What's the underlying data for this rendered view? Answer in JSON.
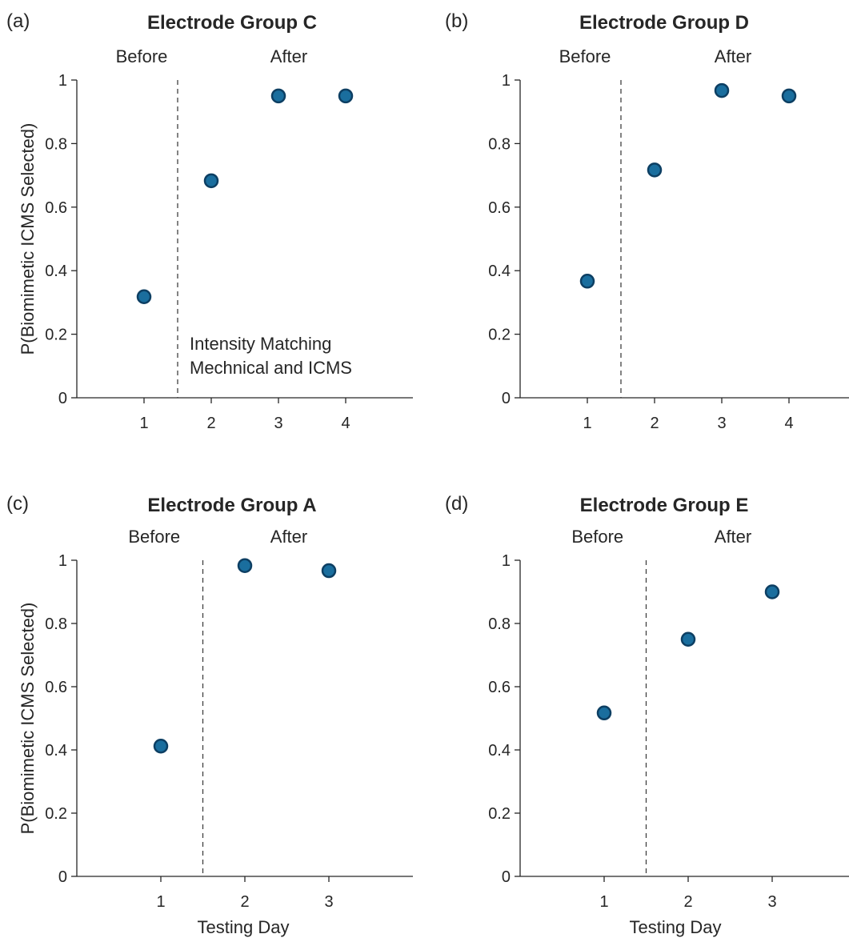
{
  "colors": {
    "marker_fill": "#1a6e9e",
    "marker_edge": "#0d3f63",
    "axis": "#262626",
    "divider": "#404040"
  },
  "chart_data": [
    {
      "type": "scatter",
      "panel_label": "(a)",
      "title": "Electrode Group C",
      "before_label": "Before",
      "after_label": "After",
      "divider_x": 1.5,
      "annotation": [
        "Intensity Matching",
        "Mechnical and ICMS"
      ],
      "xlabel": "",
      "ylabel": "P(Biomimetic ICMS Selected)",
      "xlim": [
        0,
        4
      ],
      "ylim": [
        0,
        1
      ],
      "xticks": [
        1,
        2,
        3,
        4
      ],
      "yticks": [
        0,
        0.2,
        0.4,
        0.6,
        0.8,
        1
      ],
      "ytick_labels": [
        "0",
        "0.2",
        "0.4",
        "0.6",
        "0.8",
        "1"
      ],
      "x": [
        1,
        2,
        3,
        4
      ],
      "y": [
        0.318,
        0.683,
        0.95,
        0.95
      ]
    },
    {
      "type": "scatter",
      "panel_label": "(b)",
      "title": "Electrode Group D",
      "before_label": "Before",
      "after_label": "After",
      "divider_x": 1.5,
      "xlabel": "",
      "ylabel": "",
      "xlim": [
        0,
        4
      ],
      "ylim": [
        0,
        1
      ],
      "xticks": [
        1,
        2,
        3,
        4
      ],
      "yticks": [
        0,
        0.2,
        0.4,
        0.6,
        0.8,
        1
      ],
      "ytick_labels": [
        "0",
        "0.2",
        "0.4",
        "0.6",
        "0.8",
        "1"
      ],
      "x": [
        1,
        2,
        3,
        4
      ],
      "y": [
        0.367,
        0.717,
        0.967,
        0.95
      ]
    },
    {
      "type": "scatter",
      "panel_label": "(c)",
      "title": "Electrode Group A",
      "before_label": "Before",
      "after_label": "After",
      "divider_x": 1.5,
      "xlabel": "Testing Day",
      "ylabel": "P(Biomimetic ICMS Selected)",
      "xlim": [
        0,
        3
      ],
      "ylim": [
        0,
        1
      ],
      "xticks": [
        1,
        2,
        3
      ],
      "yticks": [
        0,
        0.2,
        0.4,
        0.6,
        0.8,
        1
      ],
      "ytick_labels": [
        "0",
        "0.2",
        "0.4",
        "0.6",
        "0.8",
        "1"
      ],
      "x": [
        1,
        2,
        3
      ],
      "y": [
        0.412,
        0.983,
        0.967
      ]
    },
    {
      "type": "scatter",
      "panel_label": "(d)",
      "title": "Electrode Group E",
      "before_label": "Before",
      "after_label": "After",
      "divider_x": 1.5,
      "xlabel": "Testing Day",
      "ylabel": "",
      "xlim": [
        0,
        3
      ],
      "ylim": [
        0,
        1
      ],
      "xticks": [
        1,
        2,
        3
      ],
      "yticks": [
        0,
        0.2,
        0.4,
        0.6,
        0.8,
        1
      ],
      "ytick_labels": [
        "0",
        "0.2",
        "0.4",
        "0.6",
        "0.8",
        "1"
      ],
      "x": [
        1,
        2,
        3
      ],
      "y": [
        0.517,
        0.75,
        0.9
      ]
    }
  ]
}
